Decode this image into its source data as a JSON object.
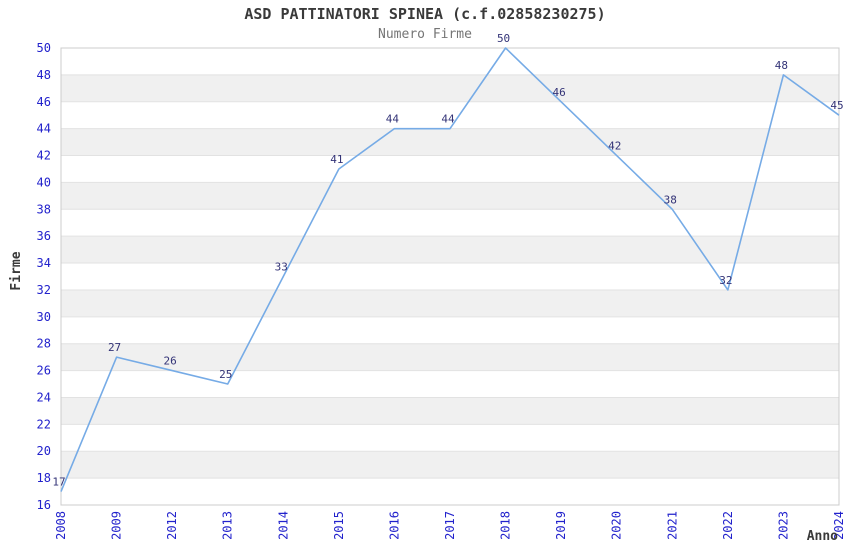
{
  "page": {
    "title": "ASD PATTINATORI SPINEA (c.f.02858230275)",
    "subtitle": "Numero Firme"
  },
  "chart_data": {
    "type": "line",
    "title": "ASD PATTINATORI SPINEA (c.f.02858230275)",
    "subtitle": "Numero Firme",
    "xlabel": "Anno",
    "ylabel": "Firme",
    "categories": [
      "2008",
      "2009",
      "2012",
      "2013",
      "2014",
      "2015",
      "2016",
      "2017",
      "2018",
      "2019",
      "2020",
      "2021",
      "2022",
      "2023",
      "2024"
    ],
    "values": [
      17,
      27,
      26,
      25,
      33,
      41,
      44,
      44,
      50,
      46,
      42,
      38,
      32,
      48,
      45
    ],
    "ylim": [
      16,
      50
    ],
    "ytick_step": 2,
    "grid": "horizontal-bands",
    "legend": "none",
    "colors": {
      "line": "#76abe6",
      "tick_label": "#2222cc",
      "data_label": "#333377",
      "band": "#f0f0f0",
      "gridline": "#e2e2e2",
      "border": "#cccccc",
      "title": "#3a3a3a",
      "subtitle": "#757575",
      "axis_title": "#3a3a3a"
    }
  }
}
